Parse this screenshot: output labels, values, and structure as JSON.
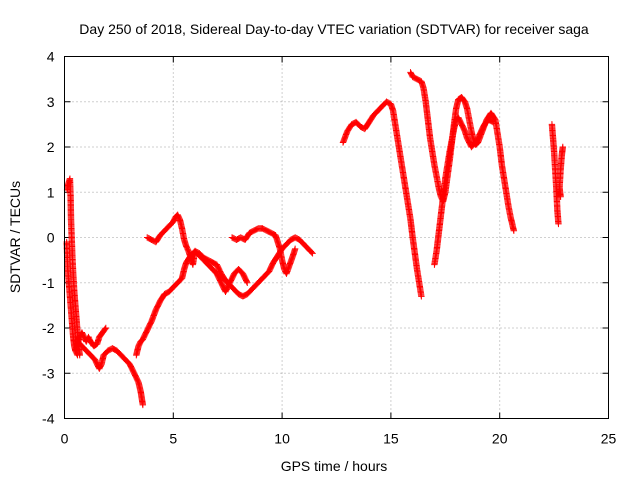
{
  "chart_data": {
    "type": "scatter",
    "title": "Day 250 of 2018, Sidereal Day-to-day VTEC variation (SDTVAR) for receiver saga",
    "xlabel": "GPS time / hours",
    "ylabel": "SDTVAR / TECUs",
    "xlim": [
      0,
      25
    ],
    "ylim": [
      -4,
      4
    ],
    "xticks": [
      0,
      5,
      10,
      15,
      20,
      25
    ],
    "yticks": [
      -4,
      -3,
      -2,
      -1,
      0,
      1,
      2,
      3,
      4
    ],
    "xtick_labels": [
      "0",
      "5",
      "10",
      "15",
      "20",
      "25"
    ],
    "ytick_labels": [
      "-4",
      "-3",
      "-2",
      "-1",
      "0",
      "1",
      "2",
      "3",
      "4"
    ],
    "grid": true,
    "marker": "plus",
    "color": "#ff0000",
    "segments": [
      [
        [
          0.12,
          1.05
        ],
        [
          0.18,
          1.2
        ],
        [
          0.25,
          1.3
        ],
        [
          0.28,
          0.9
        ],
        [
          0.3,
          0.4
        ],
        [
          0.33,
          0.0
        ],
        [
          0.36,
          -0.4
        ],
        [
          0.4,
          -0.8
        ],
        [
          0.45,
          -1.2
        ],
        [
          0.5,
          -1.5
        ],
        [
          0.55,
          -1.8
        ],
        [
          0.6,
          -2.1
        ],
        [
          0.65,
          -2.4
        ],
        [
          0.7,
          -2.6
        ]
      ],
      [
        [
          0.1,
          -0.1
        ],
        [
          0.15,
          -0.7
        ],
        [
          0.2,
          -1.0
        ],
        [
          0.25,
          -1.3
        ],
        [
          0.3,
          -1.6
        ],
        [
          0.35,
          -1.9
        ],
        [
          0.4,
          -2.2
        ],
        [
          0.45,
          -2.4
        ],
        [
          0.5,
          -2.5
        ],
        [
          0.6,
          -2.6
        ]
      ],
      [
        [
          0.6,
          -2.3
        ],
        [
          0.8,
          -2.4
        ],
        [
          1.0,
          -2.5
        ],
        [
          1.2,
          -2.6
        ],
        [
          1.4,
          -2.7
        ],
        [
          1.5,
          -2.8
        ],
        [
          1.6,
          -2.9
        ],
        [
          1.7,
          -2.8
        ],
        [
          1.8,
          -2.6
        ],
        [
          2.0,
          -2.5
        ],
        [
          2.2,
          -2.45
        ],
        [
          2.4,
          -2.5
        ],
        [
          2.6,
          -2.6
        ],
        [
          2.8,
          -2.7
        ],
        [
          3.0,
          -2.8
        ],
        [
          3.1,
          -2.9
        ],
        [
          3.2,
          -3.0
        ],
        [
          3.3,
          -3.1
        ],
        [
          3.4,
          -3.2
        ],
        [
          3.5,
          -3.4
        ],
        [
          3.55,
          -3.55
        ],
        [
          3.6,
          -3.7
        ]
      ],
      [
        [
          0.5,
          -2.5
        ],
        [
          0.7,
          -2.2
        ],
        [
          0.8,
          -2.1
        ],
        [
          0.9,
          -2.2
        ],
        [
          1.0,
          -2.3
        ],
        [
          1.1,
          -2.2
        ],
        [
          1.2,
          -2.3
        ],
        [
          1.35,
          -2.4
        ],
        [
          1.5,
          -2.35
        ],
        [
          1.6,
          -2.2
        ],
        [
          1.75,
          -2.1
        ],
        [
          1.9,
          -2.0
        ]
      ],
      [
        [
          3.3,
          -2.6
        ],
        [
          3.4,
          -2.4
        ],
        [
          3.5,
          -2.3
        ],
        [
          3.6,
          -2.25
        ],
        [
          3.8,
          -2.05
        ],
        [
          4.0,
          -1.85
        ],
        [
          4.2,
          -1.6
        ],
        [
          4.4,
          -1.4
        ],
        [
          4.6,
          -1.25
        ],
        [
          4.8,
          -1.2
        ],
        [
          5.0,
          -1.1
        ],
        [
          5.2,
          -1.0
        ],
        [
          5.4,
          -0.9
        ],
        [
          5.5,
          -0.7
        ],
        [
          5.6,
          -0.55
        ],
        [
          5.8,
          -0.4
        ],
        [
          6.0,
          -0.3
        ],
        [
          6.2,
          -0.35
        ],
        [
          6.4,
          -0.45
        ],
        [
          6.6,
          -0.5
        ],
        [
          6.8,
          -0.55
        ],
        [
          7.0,
          -0.6
        ],
        [
          7.2,
          -0.8
        ],
        [
          7.4,
          -0.95
        ],
        [
          7.6,
          -1.05
        ],
        [
          7.8,
          -1.15
        ],
        [
          8.0,
          -1.25
        ],
        [
          8.2,
          -1.3
        ],
        [
          8.4,
          -1.25
        ],
        [
          8.6,
          -1.15
        ],
        [
          8.8,
          -1.05
        ],
        [
          9.0,
          -0.95
        ],
        [
          9.2,
          -0.85
        ],
        [
          9.4,
          -0.75
        ],
        [
          9.6,
          -0.55
        ],
        [
          9.8,
          -0.4
        ],
        [
          10.0,
          -0.25
        ],
        [
          10.2,
          -0.15
        ],
        [
          10.4,
          -0.05
        ],
        [
          10.6,
          0.0
        ],
        [
          10.8,
          -0.05
        ],
        [
          11.0,
          -0.15
        ],
        [
          11.2,
          -0.25
        ],
        [
          11.4,
          -0.35
        ]
      ],
      [
        [
          3.8,
          0.0
        ],
        [
          4.0,
          -0.05
        ],
        [
          4.2,
          -0.1
        ],
        [
          4.4,
          0.05
        ],
        [
          4.6,
          0.15
        ],
        [
          4.8,
          0.25
        ],
        [
          5.0,
          0.35
        ],
        [
          5.1,
          0.45
        ],
        [
          5.2,
          0.5
        ],
        [
          5.3,
          0.4
        ],
        [
          5.4,
          0.2
        ],
        [
          5.5,
          -0.05
        ],
        [
          5.6,
          -0.2
        ],
        [
          5.7,
          -0.3
        ],
        [
          5.8,
          -0.45
        ],
        [
          5.9,
          -0.6
        ],
        [
          6.0,
          -0.3
        ],
        [
          6.2,
          -0.4
        ],
        [
          6.4,
          -0.5
        ],
        [
          6.6,
          -0.6
        ],
        [
          6.8,
          -0.7
        ],
        [
          7.0,
          -0.8
        ],
        [
          7.2,
          -1.0
        ],
        [
          7.4,
          -1.2
        ],
        [
          7.6,
          -1.0
        ],
        [
          7.8,
          -0.8
        ],
        [
          8.0,
          -0.7
        ],
        [
          8.2,
          -0.8
        ],
        [
          8.4,
          -1.0
        ]
      ],
      [
        [
          7.7,
          0.0
        ],
        [
          7.9,
          -0.05
        ],
        [
          8.1,
          0.0
        ],
        [
          8.3,
          -0.05
        ],
        [
          8.5,
          0.1
        ],
        [
          8.7,
          0.15
        ],
        [
          8.9,
          0.2
        ],
        [
          9.1,
          0.2
        ],
        [
          9.3,
          0.15
        ],
        [
          9.5,
          0.1
        ],
        [
          9.7,
          0.05
        ],
        [
          9.8,
          -0.1
        ],
        [
          9.9,
          -0.25
        ],
        [
          10.0,
          -0.5
        ],
        [
          10.1,
          -0.7
        ],
        [
          10.2,
          -0.8
        ],
        [
          10.35,
          -0.6
        ],
        [
          10.5,
          -0.4
        ],
        [
          10.6,
          -0.25
        ]
      ],
      [
        [
          12.8,
          2.1
        ],
        [
          13.0,
          2.35
        ],
        [
          13.2,
          2.5
        ],
        [
          13.4,
          2.55
        ],
        [
          13.6,
          2.45
        ],
        [
          13.8,
          2.4
        ],
        [
          14.0,
          2.55
        ],
        [
          14.2,
          2.7
        ],
        [
          14.4,
          2.8
        ],
        [
          14.6,
          2.9
        ],
        [
          14.8,
          3.0
        ],
        [
          15.0,
          2.95
        ],
        [
          15.1,
          2.8
        ],
        [
          15.2,
          2.5
        ],
        [
          15.3,
          2.2
        ],
        [
          15.4,
          1.9
        ],
        [
          15.5,
          1.6
        ],
        [
          15.6,
          1.3
        ],
        [
          15.7,
          1.0
        ],
        [
          15.8,
          0.7
        ],
        [
          15.9,
          0.4
        ],
        [
          16.0,
          0.0
        ],
        [
          16.1,
          -0.35
        ],
        [
          16.2,
          -0.7
        ],
        [
          16.3,
          -1.0
        ],
        [
          16.4,
          -1.3
        ]
      ],
      [
        [
          15.9,
          3.65
        ],
        [
          16.0,
          3.55
        ],
        [
          16.2,
          3.5
        ],
        [
          16.4,
          3.45
        ],
        [
          16.5,
          3.3
        ],
        [
          16.6,
          3.0
        ],
        [
          16.7,
          2.6
        ],
        [
          16.8,
          2.2
        ],
        [
          16.9,
          1.9
        ],
        [
          17.0,
          1.6
        ],
        [
          17.1,
          1.35
        ],
        [
          17.2,
          1.1
        ],
        [
          17.3,
          0.9
        ],
        [
          17.4,
          0.8
        ],
        [
          17.5,
          1.0
        ],
        [
          17.6,
          1.35
        ],
        [
          17.7,
          1.7
        ],
        [
          17.8,
          2.1
        ],
        [
          17.9,
          2.5
        ],
        [
          18.0,
          2.85
        ],
        [
          18.1,
          3.05
        ],
        [
          18.25,
          3.1
        ],
        [
          18.4,
          3.0
        ],
        [
          18.5,
          2.85
        ],
        [
          18.6,
          2.6
        ],
        [
          18.7,
          2.35
        ],
        [
          18.8,
          2.15
        ],
        [
          18.9,
          2.05
        ],
        [
          19.0,
          2.1
        ],
        [
          19.2,
          2.35
        ],
        [
          19.4,
          2.6
        ],
        [
          19.6,
          2.75
        ],
        [
          19.8,
          2.6
        ],
        [
          20.0,
          2.0
        ],
        [
          20.1,
          1.6
        ],
        [
          20.2,
          1.3
        ],
        [
          20.3,
          1.0
        ],
        [
          20.4,
          0.7
        ],
        [
          20.5,
          0.45
        ],
        [
          20.6,
          0.25
        ],
        [
          20.65,
          0.15
        ]
      ],
      [
        [
          17.0,
          -0.6
        ],
        [
          17.1,
          -0.3
        ],
        [
          17.2,
          0.1
        ],
        [
          17.3,
          0.5
        ],
        [
          17.4,
          0.9
        ],
        [
          17.5,
          1.3
        ],
        [
          17.6,
          1.6
        ],
        [
          17.7,
          1.9
        ],
        [
          17.8,
          2.15
        ],
        [
          17.9,
          2.4
        ],
        [
          18.0,
          2.6
        ],
        [
          18.1,
          2.65
        ],
        [
          18.2,
          2.55
        ],
        [
          18.3,
          2.45
        ],
        [
          18.4,
          2.35
        ],
        [
          18.5,
          2.2
        ],
        [
          18.6,
          2.1
        ],
        [
          18.7,
          2.0
        ],
        [
          18.9,
          2.1
        ],
        [
          19.1,
          2.3
        ],
        [
          19.3,
          2.5
        ],
        [
          19.5,
          2.6
        ],
        [
          19.7,
          2.55
        ]
      ],
      [
        [
          22.4,
          2.5
        ],
        [
          22.45,
          2.2
        ],
        [
          22.5,
          1.9
        ],
        [
          22.55,
          1.5
        ],
        [
          22.6,
          1.1
        ],
        [
          22.65,
          0.6
        ],
        [
          22.7,
          0.3
        ]
      ],
      [
        [
          22.9,
          2.0
        ],
        [
          22.85,
          1.8
        ],
        [
          22.8,
          1.5
        ],
        [
          22.75,
          1.1
        ],
        [
          22.8,
          0.9
        ]
      ]
    ]
  }
}
